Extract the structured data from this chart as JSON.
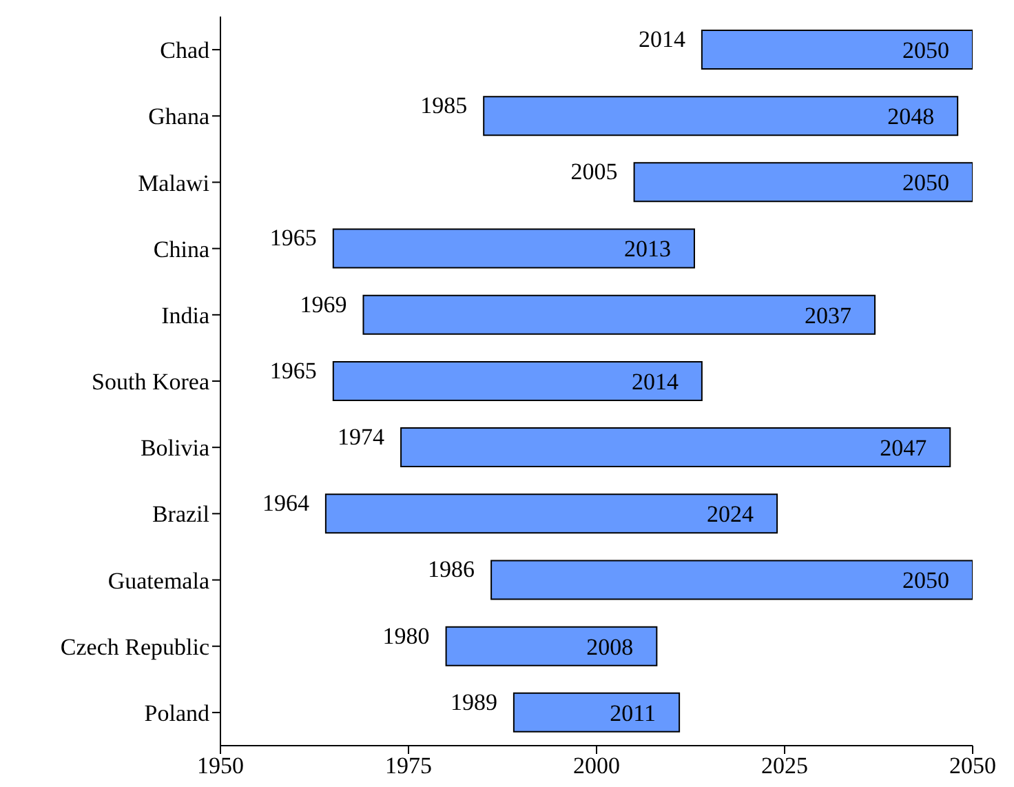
{
  "chart_data": {
    "type": "bar",
    "orientation": "horizontal",
    "categories": [
      "Chad",
      "Ghana",
      "Malawi",
      "China",
      "India",
      "South Korea",
      "Bolivia",
      "Brazil",
      "Guatemala",
      "Czech Republic",
      "Poland"
    ],
    "base": [
      2014,
      1985,
      2005,
      1965,
      1969,
      1965,
      1974,
      1964,
      1986,
      1980,
      1989
    ],
    "values": [
      36,
      63,
      45,
      48,
      68,
      49,
      73,
      60,
      64,
      28,
      22
    ],
    "value_labels": [
      "2050",
      "2048",
      "2050",
      "2013",
      "2037",
      "2014",
      "2047",
      "2024",
      "2050",
      "2008",
      "2011"
    ],
    "annotations": [
      {
        "text": "2014",
        "x": 2014,
        "y": "Chad"
      },
      {
        "text": "1985",
        "x": 1985,
        "y": "Ghana"
      },
      {
        "text": "2005",
        "x": 2005,
        "y": "Malawi"
      },
      {
        "text": "1965",
        "x": 1965,
        "y": "China"
      },
      {
        "text": "1969",
        "x": 1969,
        "y": "India"
      },
      {
        "text": "1965",
        "x": 1965,
        "y": "South Korea"
      },
      {
        "text": "1974",
        "x": 1974,
        "y": "Bolivia"
      },
      {
        "text": "1964",
        "x": 1964,
        "y": "Brazil"
      },
      {
        "text": "1986",
        "x": 1986,
        "y": "Guatemala"
      },
      {
        "text": "1980",
        "x": 1980,
        "y": "Czech Republic"
      },
      {
        "text": "1989",
        "x": 1989,
        "y": "Poland"
      }
    ],
    "color": "#6699ff",
    "xlim": [
      1950,
      2050
    ],
    "xticks": [
      1950,
      1975,
      2000,
      2025,
      2050
    ],
    "grid": false,
    "legend": false
  }
}
